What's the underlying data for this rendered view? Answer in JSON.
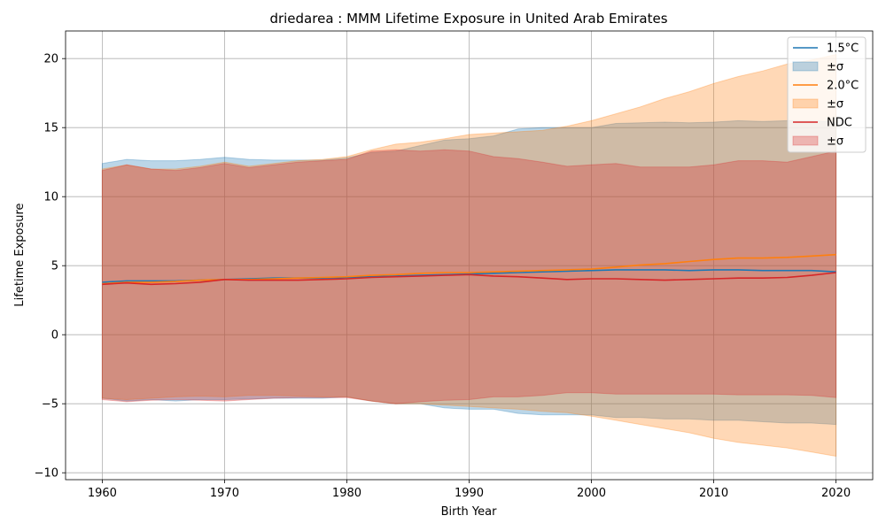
{
  "chart_data": {
    "type": "line",
    "title": "driedarea : MMM Lifetime Exposure in United Arab Emirates",
    "xlabel": "Birth Year",
    "ylabel": "Lifetime Exposure",
    "xlim": [
      1957,
      2023
    ],
    "ylim": [
      -10.5,
      22
    ],
    "xticks": [
      1960,
      1970,
      1980,
      1990,
      2000,
      2010,
      2020
    ],
    "yticks": [
      -10,
      -5,
      0,
      5,
      10,
      15,
      20
    ],
    "xtick_labels": [
      "1960",
      "1970",
      "1980",
      "1990",
      "2000",
      "2010",
      "2020"
    ],
    "ytick_labels": [
      "−10",
      "−5",
      "0",
      "5",
      "10",
      "15",
      "20"
    ],
    "grid": true,
    "legend_position": "top-right",
    "legend": [
      "1.5°C",
      "±σ",
      "2.0°C",
      "±σ",
      "NDC",
      "±σ"
    ],
    "x": [
      1960,
      1962,
      1964,
      1966,
      1968,
      1970,
      1972,
      1974,
      1976,
      1978,
      1980,
      1982,
      1984,
      1986,
      1988,
      1990,
      1992,
      1994,
      1996,
      1998,
      2000,
      2002,
      2004,
      2006,
      2008,
      2010,
      2012,
      2014,
      2016,
      2018,
      2020
    ],
    "series": [
      {
        "name": "1.5°C",
        "color": "#1f77b4",
        "mean": [
          3.8,
          3.9,
          3.9,
          3.9,
          3.95,
          4.0,
          4.05,
          4.1,
          4.1,
          4.1,
          4.15,
          4.2,
          4.25,
          4.3,
          4.35,
          4.4,
          4.45,
          4.5,
          4.55,
          4.6,
          4.65,
          4.7,
          4.7,
          4.7,
          4.65,
          4.7,
          4.7,
          4.65,
          4.65,
          4.65,
          4.55
        ],
        "upper": [
          12.4,
          12.7,
          12.6,
          12.6,
          12.7,
          12.85,
          12.7,
          12.65,
          12.65,
          12.65,
          12.8,
          13.2,
          13.3,
          13.7,
          14.1,
          14.2,
          14.4,
          14.9,
          15.0,
          15.0,
          15.0,
          15.3,
          15.35,
          15.4,
          15.35,
          15.4,
          15.5,
          15.45,
          15.5,
          15.5,
          15.4
        ],
        "lower": [
          -4.6,
          -4.8,
          -4.7,
          -4.8,
          -4.7,
          -4.7,
          -4.65,
          -4.6,
          -4.6,
          -4.6,
          -4.5,
          -4.8,
          -5.0,
          -5.0,
          -5.3,
          -5.4,
          -5.4,
          -5.7,
          -5.8,
          -5.8,
          -5.8,
          -6.0,
          -6.0,
          -6.1,
          -6.1,
          -6.2,
          -6.2,
          -6.3,
          -6.4,
          -6.4,
          -6.5
        ]
      },
      {
        "name": "2.0°C",
        "color": "#ff7f0e",
        "mean": [
          3.7,
          3.8,
          3.8,
          3.85,
          3.95,
          4.0,
          4.0,
          4.05,
          4.1,
          4.15,
          4.2,
          4.3,
          4.35,
          4.45,
          4.5,
          4.5,
          4.55,
          4.6,
          4.65,
          4.7,
          4.75,
          4.9,
          5.05,
          5.15,
          5.3,
          5.45,
          5.55,
          5.55,
          5.6,
          5.7,
          5.8
        ],
        "upper": [
          12.0,
          12.3,
          12.0,
          12.0,
          12.2,
          12.5,
          12.2,
          12.4,
          12.6,
          12.7,
          12.9,
          13.4,
          13.8,
          13.95,
          14.2,
          14.5,
          14.6,
          14.7,
          14.8,
          15.1,
          15.5,
          16.0,
          16.5,
          17.1,
          17.6,
          18.2,
          18.7,
          19.1,
          19.6,
          19.9,
          20.3
        ],
        "lower": [
          -4.6,
          -4.7,
          -4.6,
          -4.5,
          -4.45,
          -4.5,
          -4.4,
          -4.4,
          -4.45,
          -4.5,
          -4.5,
          -4.8,
          -5.0,
          -5.0,
          -5.1,
          -5.2,
          -5.3,
          -5.4,
          -5.55,
          -5.65,
          -5.9,
          -6.2,
          -6.5,
          -6.8,
          -7.1,
          -7.5,
          -7.8,
          -8.0,
          -8.2,
          -8.5,
          -8.8
        ]
      },
      {
        "name": "NDC",
        "color": "#d62728",
        "mean": [
          3.65,
          3.75,
          3.65,
          3.7,
          3.8,
          4.0,
          3.95,
          3.95,
          3.95,
          4.0,
          4.05,
          4.15,
          4.2,
          4.25,
          4.3,
          4.35,
          4.25,
          4.2,
          4.1,
          4.0,
          4.05,
          4.05,
          4.0,
          3.95,
          4.0,
          4.05,
          4.1,
          4.1,
          4.15,
          4.3,
          4.5
        ],
        "upper": [
          11.9,
          12.3,
          12.0,
          11.9,
          12.1,
          12.4,
          12.1,
          12.3,
          12.5,
          12.6,
          12.7,
          13.3,
          13.4,
          13.3,
          13.4,
          13.3,
          12.9,
          12.75,
          12.5,
          12.2,
          12.3,
          12.4,
          12.15,
          12.15,
          12.15,
          12.3,
          12.6,
          12.6,
          12.5,
          12.9,
          13.3
        ],
        "lower": [
          -4.7,
          -4.85,
          -4.75,
          -4.7,
          -4.75,
          -4.8,
          -4.7,
          -4.6,
          -4.55,
          -4.55,
          -4.55,
          -4.8,
          -5.0,
          -4.85,
          -4.75,
          -4.7,
          -4.5,
          -4.5,
          -4.4,
          -4.2,
          -4.2,
          -4.3,
          -4.3,
          -4.3,
          -4.3,
          -4.3,
          -4.35,
          -4.35,
          -4.35,
          -4.4,
          -4.55
        ]
      }
    ]
  }
}
